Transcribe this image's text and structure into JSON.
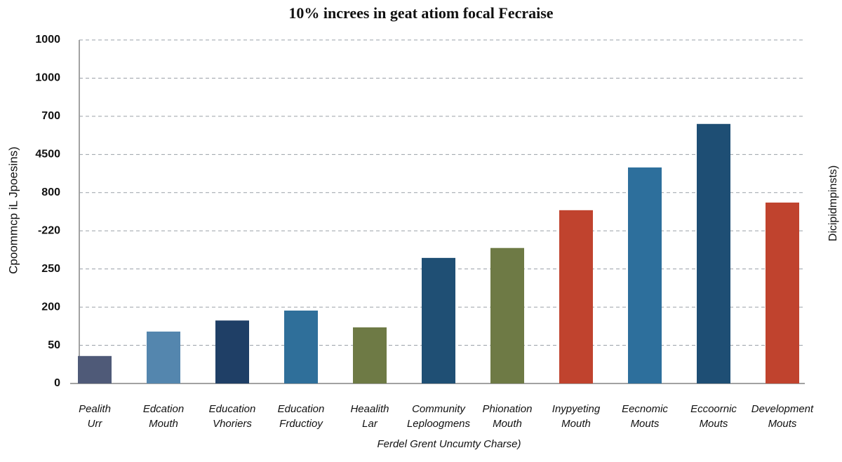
{
  "chart_data": {
    "type": "bar",
    "title": "10% increes in geat atiom focal Fecraise",
    "x_label": "Ferdel Grent Uncumty Charse)",
    "y_label": "Cpoommcp iL Jpoesins)",
    "y2_label": "Dicipidmpinsts)",
    "categories": [
      [
        "Pealith",
        "Urr"
      ],
      [
        "Edcation",
        "Mouth"
      ],
      [
        "Education",
        "Vhoriers"
      ],
      [
        "Education",
        "Frductioy"
      ],
      [
        "Heaalith",
        "Lar"
      ],
      [
        "Community",
        "Leploogmens"
      ],
      [
        "Phionation",
        "Mouth"
      ],
      [
        "Inypyeting",
        "Mouth"
      ],
      [
        "Eecnomic",
        "Mouts"
      ],
      [
        "Eccoornic",
        "Mouts"
      ],
      [
        "Development",
        "Mouts"
      ]
    ],
    "values": [
      0.72,
      1.36,
      1.65,
      1.91,
      1.47,
      3.29,
      3.55,
      4.54,
      5.66,
      6.8,
      4.74
    ],
    "colors": [
      "#4f5a78",
      "#5486ae",
      "#1f3f66",
      "#2f6f9a",
      "#6e7a45",
      "#1f4f74",
      "#6e7a45",
      "#c0432e",
      "#2d6f9c",
      "#1e4e74",
      "#c0432e"
    ],
    "ylim": [
      0,
      9
    ],
    "yticks": [
      {
        "value": 0,
        "label": "0"
      },
      {
        "value": 1,
        "label": "50"
      },
      {
        "value": 2,
        "label": "200"
      },
      {
        "value": 3,
        "label": "250"
      },
      {
        "value": 4,
        "label": "-220"
      },
      {
        "value": 5,
        "label": "800"
      },
      {
        "value": 6,
        "label": "4500"
      },
      {
        "value": 7,
        "label": "700"
      },
      {
        "value": 8,
        "label": "1000"
      },
      {
        "value": 9,
        "label": "1000"
      }
    ],
    "grid": true
  }
}
